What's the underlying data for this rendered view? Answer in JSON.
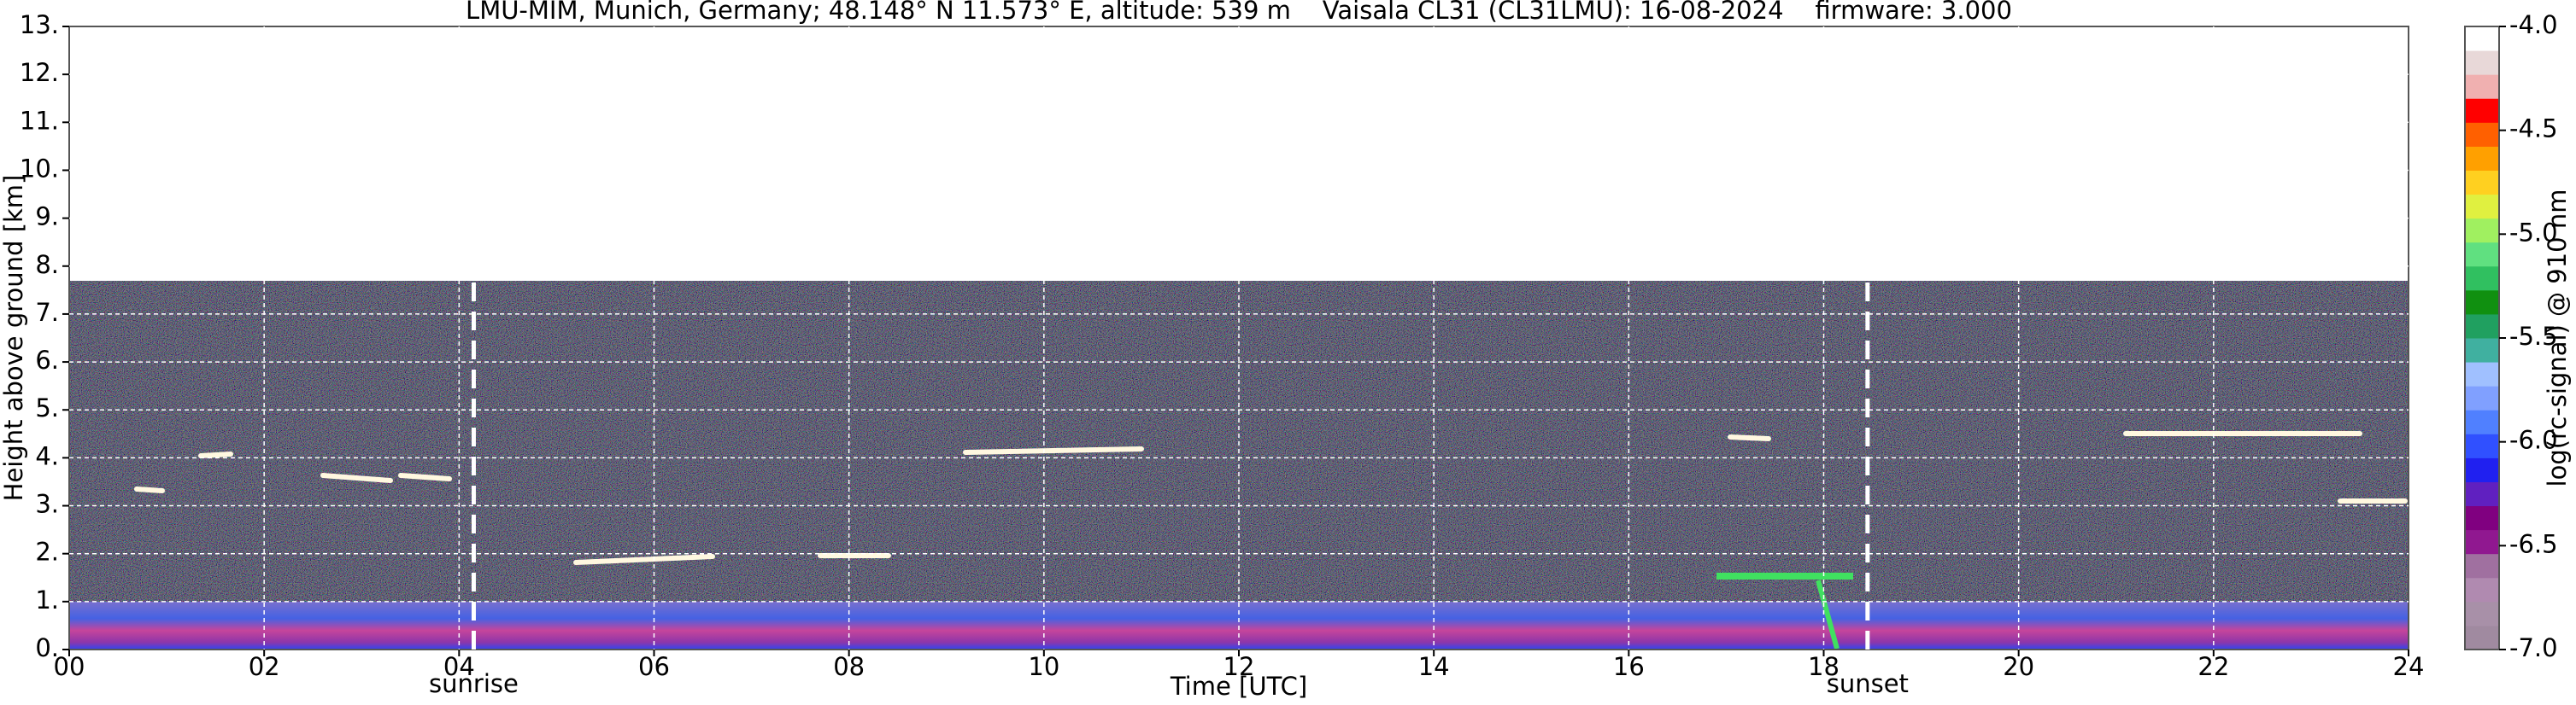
{
  "chart_data": {
    "type": "heatmap",
    "title": "LMU-MIM, Munich, Germany; 48.148° N 11.573° E, altitude: 539 m    Vaisala CL31 (CL31LMU): 16-08-2024    firmware: 3.000",
    "x_label": "Time [UTC]",
    "y_label": "Height above ground [km]",
    "xlim": [
      0,
      24
    ],
    "xticks": [
      {
        "value": 0,
        "label": "00"
      },
      {
        "value": 2,
        "label": "02"
      },
      {
        "value": 4,
        "label": "04"
      },
      {
        "value": 6,
        "label": "06"
      },
      {
        "value": 8,
        "label": "08"
      },
      10,
      12,
      14,
      16,
      18,
      20,
      22,
      24
    ],
    "ylim": [
      0,
      13
    ],
    "yticks": [
      {
        "value": 0,
        "label": "0."
      },
      {
        "value": 1,
        "label": "1."
      },
      {
        "value": 2,
        "label": "2."
      },
      {
        "value": 3,
        "label": "3."
      },
      {
        "value": 4,
        "label": "4."
      },
      {
        "value": 5,
        "label": "5."
      },
      {
        "value": 6,
        "label": "6."
      },
      {
        "value": 7,
        "label": "7."
      },
      {
        "value": 8,
        "label": "8."
      },
      {
        "value": 9,
        "label": "9."
      },
      {
        "value": 10,
        "label": "10."
      },
      {
        "value": 11,
        "label": "11."
      },
      {
        "value": 12,
        "label": "12."
      },
      {
        "value": 13,
        "label": "13."
      }
    ],
    "grid": true,
    "annotations": [
      {
        "text": "sunrise",
        "x": 4.15
      },
      {
        "text": "sunset",
        "x": 18.45
      }
    ],
    "colorbar": {
      "label": "log(rc-signal) @ 910 nm",
      "lim": [
        -7,
        -4
      ],
      "ticks": [
        {
          "value": -7,
          "label": "-7.0"
        },
        -6.5,
        {
          "value": -6,
          "label": "-6.0"
        },
        -5.5,
        {
          "value": -5,
          "label": "-5.0"
        },
        -4.5,
        {
          "value": -4,
          "label": "-4.0"
        }
      ],
      "colors": [
        "#a08aa0",
        "#a890a8",
        "#b08ab0",
        "#a070a0",
        "#901890",
        "#800080",
        "#6020c0",
        "#2020f0",
        "#3050ff",
        "#5080ff",
        "#80a0ff",
        "#a0c0ff",
        "#40b0a0",
        "#20a060",
        "#109010",
        "#30c060",
        "#60e080",
        "#a0f060",
        "#e0f040",
        "#ffd020",
        "#ffa000",
        "#ff6000",
        "#ff0000",
        "#f0b0b0",
        "#e8d8d8",
        "#ffffff"
      ]
    }
  }
}
